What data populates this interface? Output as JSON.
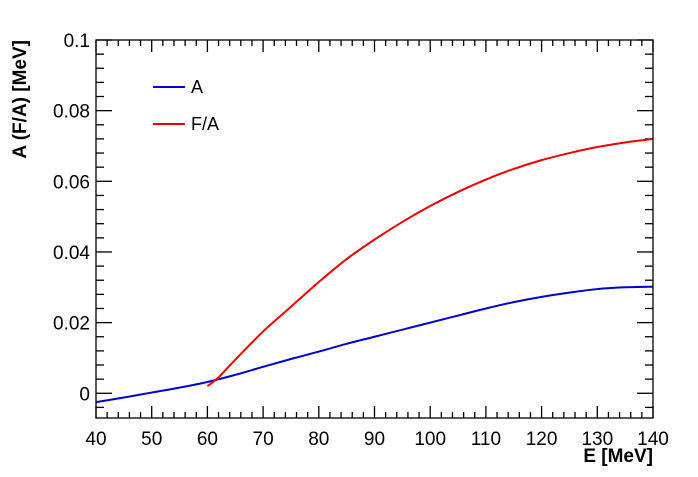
{
  "chart_data": {
    "type": "line",
    "title": "",
    "xlabel": "E [MeV]",
    "ylabel": "A (F/A) [MeV]",
    "xlim": [
      40,
      140
    ],
    "ylim": [
      -0.007,
      0.1
    ],
    "xticks": [
      40,
      50,
      60,
      70,
      80,
      90,
      100,
      110,
      120,
      130,
      140
    ],
    "xtick_labels": [
      "40",
      "50",
      "60",
      "70",
      "80",
      "90",
      "100",
      "110",
      "120",
      "130",
      "140"
    ],
    "yticks": [
      0,
      0.02,
      0.04,
      0.06,
      0.08,
      0.1
    ],
    "ytick_labels": [
      "0",
      "0.02",
      "0.04",
      "0.06",
      "0.08",
      "0.1"
    ],
    "grid": false,
    "legend_position": "top-left",
    "series": [
      {
        "name": "A",
        "color": "#0000cc",
        "x": [
          40,
          45,
          50,
          55,
          60,
          65,
          70,
          75,
          80,
          85,
          90,
          95,
          100,
          105,
          110,
          115,
          120,
          125,
          130,
          135,
          140
        ],
        "y": [
          -0.0025,
          -0.0012,
          0.0002,
          0.0016,
          0.0032,
          0.0052,
          0.0075,
          0.0097,
          0.0118,
          0.014,
          0.016,
          0.018,
          0.02,
          0.022,
          0.024,
          0.0258,
          0.0273,
          0.0285,
          0.0295,
          0.03,
          0.0302
        ]
      },
      {
        "name": "F/A",
        "color": "#ee0000",
        "x": [
          60,
          62,
          65,
          70,
          75,
          80,
          85,
          90,
          95,
          100,
          105,
          110,
          115,
          120,
          125,
          130,
          135,
          140
        ],
        "y": [
          0.002,
          0.0045,
          0.0095,
          0.0175,
          0.0245,
          0.0315,
          0.038,
          0.0435,
          0.0485,
          0.053,
          0.057,
          0.0605,
          0.0635,
          0.066,
          0.068,
          0.0697,
          0.071,
          0.072
        ]
      }
    ]
  }
}
